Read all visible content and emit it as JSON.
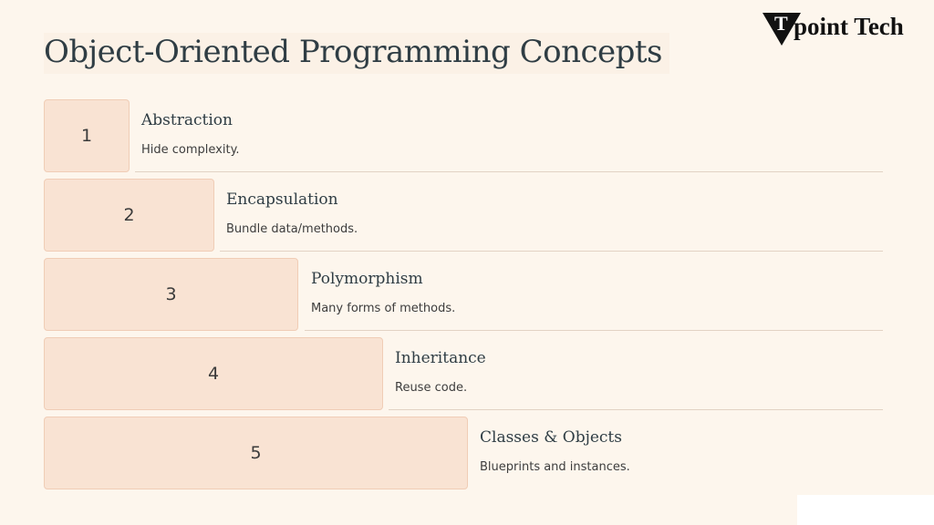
{
  "slide": {
    "title": "Object-Oriented Programming Concepts"
  },
  "logo": {
    "mark_letter": "T",
    "text": "point Tech"
  },
  "steps": [
    {
      "number": "1",
      "heading": "Abstraction",
      "description": "Hide complexity."
    },
    {
      "number": "2",
      "heading": "Encapsulation",
      "description": "Bundle data/methods."
    },
    {
      "number": "3",
      "heading": "Polymorphism",
      "description": "Many forms of methods."
    },
    {
      "number": "4",
      "heading": "Inheritance",
      "description": "Reuse code."
    },
    {
      "number": "5",
      "heading": "Classes & Objects",
      "description": "Blueprints and instances."
    }
  ]
}
